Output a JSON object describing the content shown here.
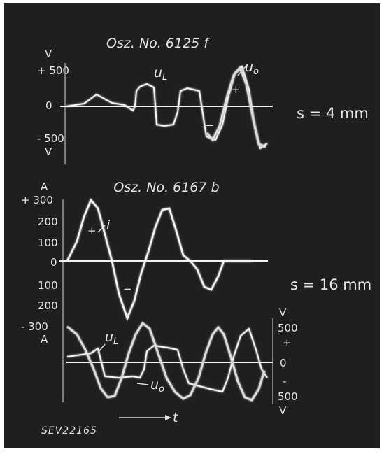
{
  "figure": {
    "ref_code": "SEV22165",
    "time_label": "t",
    "gap_top": "s = 4 mm",
    "gap_bottom": "s = 16 mm"
  },
  "colors": {
    "background": "#1f1f1f",
    "trace": "#f4f4f4",
    "text": "#e6e6e6"
  },
  "chart_data": [
    {
      "type": "line",
      "title": "Osz. No. 6125 f",
      "ylabel": "V",
      "yticks": [
        "+ 500",
        "0",
        "- 500"
      ],
      "ylim": [
        -700,
        700
      ],
      "x": [
        0,
        0.5,
        1,
        1.5,
        2,
        2.5,
        3,
        3.5,
        4,
        4.5,
        5,
        5.5,
        6,
        6.5,
        7,
        7.5,
        8,
        8.5,
        9,
        9.5,
        10,
        10.5,
        11,
        11.5,
        12
      ],
      "series": [
        {
          "name": "uL",
          "labels": {
            "0": "0",
            "1": "+",
            "2": "-"
          },
          "values": [
            0,
            30,
            60,
            80,
            110,
            120,
            130,
            -200,
            320,
            330,
            340,
            -300,
            -280,
            360,
            360,
            380,
            -350,
            -100,
            200,
            450,
            400,
            -200,
            -450,
            -550,
            -500
          ]
        },
        {
          "name": "uo",
          "values": [
            0,
            50,
            100,
            150,
            200,
            210,
            220,
            -150,
            300,
            300,
            320,
            -260,
            -300,
            330,
            330,
            350,
            -420,
            0,
            300,
            500,
            400,
            0,
            -400,
            -560,
            -450
          ]
        }
      ]
    },
    {
      "type": "line",
      "title": "Osz. No. 6167 b",
      "ylabel": "A",
      "yticks": [
        "+ 300",
        "200",
        "100",
        "0",
        "100",
        "200",
        "- 300"
      ],
      "ylim": [
        -320,
        320
      ],
      "y2label": "V",
      "y2ticks": [
        "500",
        "+",
        "0",
        "-",
        "500"
      ],
      "y2lim": [
        -700,
        700
      ],
      "x": [
        0,
        0.5,
        1,
        1.5,
        2,
        2.5,
        3,
        3.5,
        4,
        4.5,
        5,
        5.5,
        6,
        6.5,
        7,
        7.5,
        8,
        8.5,
        9,
        9.5,
        10,
        10.5,
        11,
        11.5,
        12
      ],
      "series": [
        {
          "name": "i",
          "axis": "A",
          "labels": {
            "+": "+",
            "-": "-"
          },
          "values": [
            0,
            150,
            280,
            200,
            40,
            -150,
            -270,
            -200,
            -60,
            80,
            220,
            280,
            180,
            20,
            -60,
            -120,
            -150,
            -80,
            -20,
            0,
            0,
            0,
            0,
            0,
            0
          ]
        },
        {
          "name": "uL",
          "axis": "V",
          "values": [
            0,
            50,
            100,
            120,
            200,
            -100,
            -200,
            -100,
            250,
            300,
            280,
            250,
            -100,
            -250,
            -300,
            -150,
            -200,
            -300,
            -350,
            -200,
            300,
            400,
            250,
            -200,
            -100
          ]
        },
        {
          "name": "uo",
          "axis": "V",
          "values": [
            0,
            -200,
            -350,
            -480,
            -350,
            -150,
            150,
            400,
            300,
            0,
            -300,
            -450,
            -300,
            0,
            250,
            400,
            250,
            0,
            -300,
            -450,
            -200,
            300,
            450,
            300,
            0
          ]
        }
      ]
    }
  ]
}
